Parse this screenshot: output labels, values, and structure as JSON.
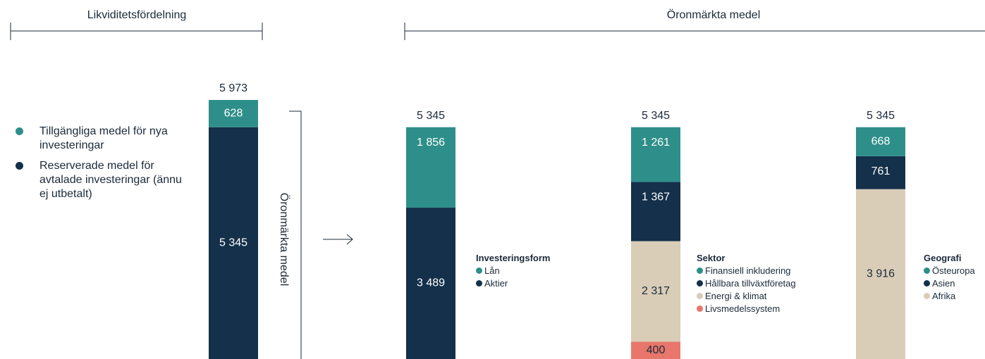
{
  "headers": [
    "Likviditetsfördelning",
    "Öronmärkta medel"
  ],
  "bracket_label": "Öronmärkta medel",
  "chart_data": [
    {
      "type": "bar",
      "stacked": true,
      "total": {
        "value": 5973,
        "label": "5 973"
      },
      "series": [
        {
          "name": "Tillgängliga medel för nya investeringar",
          "color": "#2e8f8a",
          "values": [
            628
          ],
          "value_labels": [
            "628"
          ]
        },
        {
          "name": "Reserverade medel för avtalade investeringar (ännu ej utbetalt)",
          "color": "#14304a",
          "values": [
            5345
          ],
          "value_labels": [
            "5 345"
          ]
        }
      ]
    },
    {
      "type": "bar",
      "stacked": true,
      "legend_title": "Investeringsform",
      "total": {
        "value": 5345,
        "label": "5 345"
      },
      "series": [
        {
          "name": "Lån",
          "color": "#2e8f8a",
          "values": [
            1856
          ],
          "value_labels": [
            "1 856"
          ]
        },
        {
          "name": "Aktier",
          "color": "#14304a",
          "values": [
            3489
          ],
          "value_labels": [
            "3 489"
          ]
        }
      ]
    },
    {
      "type": "bar",
      "stacked": true,
      "legend_title": "Sektor",
      "total": {
        "value": 5345,
        "label": "5 345"
      },
      "series": [
        {
          "name": "Finansiell inkludering",
          "color": "#2e8f8a",
          "values": [
            1261
          ],
          "value_labels": [
            "1 261"
          ]
        },
        {
          "name": "Hållbara tillväxtföretag",
          "color": "#14304a",
          "values": [
            1367
          ],
          "value_labels": [
            "1 367"
          ]
        },
        {
          "name": "Energi & klimat",
          "color": "#d9cdb8",
          "values": [
            2317
          ],
          "value_labels": [
            "2 317"
          ]
        },
        {
          "name": "Livsmedelssystem",
          "color": "#e8766a",
          "values": [
            400
          ],
          "value_labels": [
            "400"
          ]
        }
      ]
    },
    {
      "type": "bar",
      "stacked": true,
      "legend_title": "Geografi",
      "total": {
        "value": 5345,
        "label": "5 345"
      },
      "series": [
        {
          "name": "Östeuropa",
          "color": "#2e8f8a",
          "values": [
            668
          ],
          "value_labels": [
            "668"
          ]
        },
        {
          "name": "Asien",
          "color": "#14304a",
          "values": [
            761
          ],
          "value_labels": [
            "761"
          ]
        },
        {
          "name": "Afrika",
          "color": "#d9cdb8",
          "values": [
            3916
          ],
          "value_labels": [
            "3 916"
          ]
        }
      ]
    }
  ]
}
